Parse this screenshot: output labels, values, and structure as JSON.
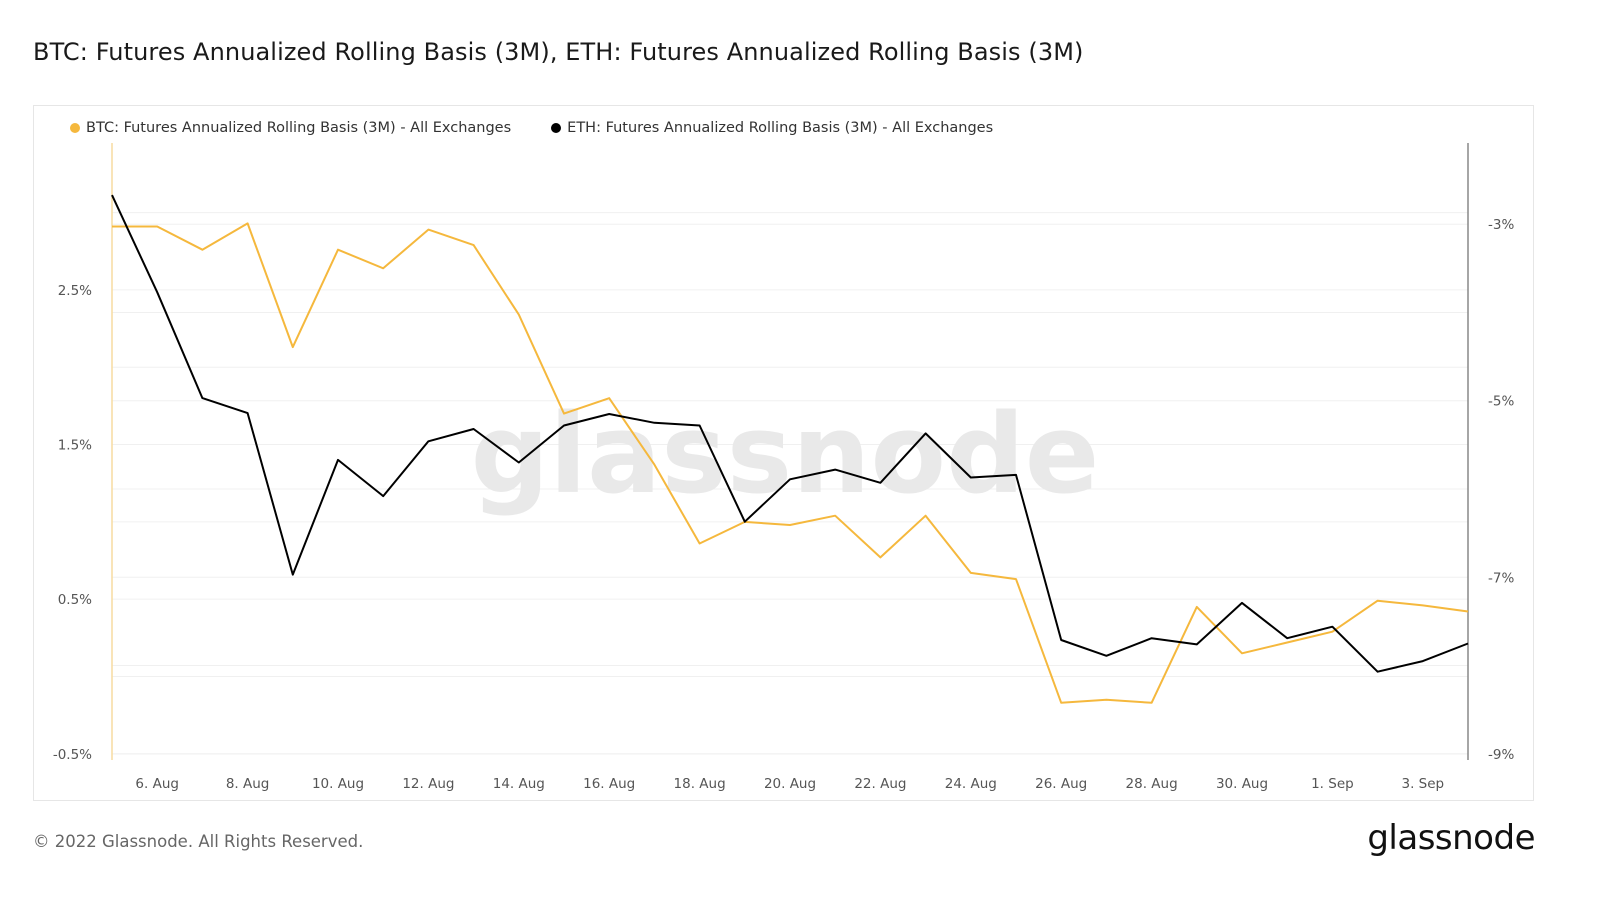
{
  "title": "BTC: Futures Annualized Rolling Basis (3M), ETH: Futures Annualized Rolling Basis (3M)",
  "footer": {
    "copyright": "© 2022 Glassnode. All Rights Reserved.",
    "logo": "glassnode",
    "watermark": "glassnode"
  },
  "chart_data": {
    "type": "line",
    "title": "BTC: Futures Annualized Rolling Basis (3M), ETH: Futures Annualized Rolling Basis (3M)",
    "legend_position": "top-left",
    "grid": true,
    "x": [
      "5 Aug",
      "6 Aug",
      "7 Aug",
      "8 Aug",
      "9 Aug",
      "10 Aug",
      "11 Aug",
      "12 Aug",
      "13 Aug",
      "14 Aug",
      "15 Aug",
      "16 Aug",
      "17 Aug",
      "18 Aug",
      "19 Aug",
      "20 Aug",
      "21 Aug",
      "22 Aug",
      "23 Aug",
      "24 Aug",
      "25 Aug",
      "26 Aug",
      "27 Aug",
      "28 Aug",
      "29 Aug",
      "30 Aug",
      "31 Aug",
      "1 Sep",
      "2 Sep",
      "3 Sep",
      "4 Sep"
    ],
    "x_tick_labels": [
      "6. Aug",
      "8. Aug",
      "10. Aug",
      "12. Aug",
      "14. Aug",
      "16. Aug",
      "18. Aug",
      "20. Aug",
      "22. Aug",
      "24. Aug",
      "26. Aug",
      "28. Aug",
      "30. Aug",
      "1. Sep",
      "3. Sep"
    ],
    "left_axis": {
      "ticks": [
        "2.5%",
        "1.5%",
        "0.5%",
        "-0.5%"
      ],
      "tick_values": [
        2.5,
        1.5,
        0.5,
        -0.5
      ],
      "ylim": [
        -0.54,
        3.45
      ]
    },
    "right_axis": {
      "ticks": [
        "-3%",
        "-5%",
        "-7%",
        "-9%"
      ],
      "tick_values": [
        -3,
        -5,
        -7,
        -9
      ],
      "ylim": [
        -9.07,
        -2.08
      ]
    },
    "series": [
      {
        "name": "BTC: Futures Annualized Rolling Basis (3M) - All Exchanges",
        "axis": "left",
        "color": "#f5b83d",
        "values": [
          2.91,
          2.91,
          2.76,
          2.93,
          2.13,
          2.76,
          2.64,
          2.89,
          2.79,
          2.34,
          1.7,
          1.8,
          1.37,
          0.86,
          1.0,
          0.98,
          1.04,
          0.77,
          1.04,
          0.67,
          0.63,
          -0.17,
          -0.15,
          -0.17,
          0.45,
          0.15,
          0.22,
          0.29,
          0.49,
          0.46,
          0.42
        ]
      },
      {
        "name": "ETH: Futures Annualized Rolling Basis (3M) - All Exchanges",
        "axis": "right",
        "color": "#000000",
        "values": [
          -2.67,
          -3.77,
          -4.97,
          -5.14,
          -6.97,
          -5.67,
          -6.08,
          -5.46,
          -5.32,
          -5.7,
          -5.28,
          -5.15,
          -5.25,
          -5.28,
          -6.37,
          -5.89,
          -5.78,
          -5.93,
          -5.37,
          -5.87,
          -5.84,
          -7.71,
          -7.89,
          -7.69,
          -7.76,
          -7.29,
          -7.69,
          -7.56,
          -8.07,
          -7.95,
          -7.75
        ]
      }
    ]
  }
}
